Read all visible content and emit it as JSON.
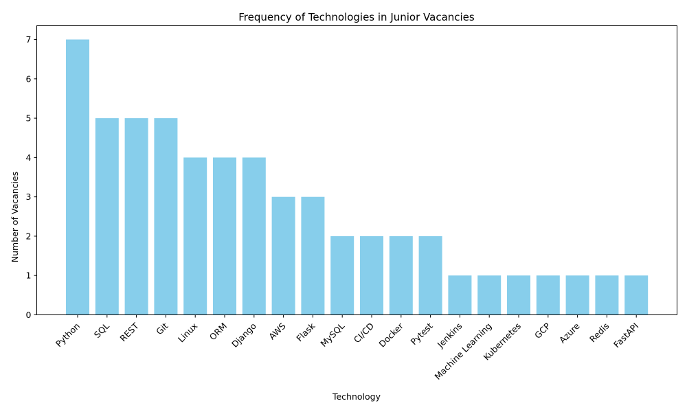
{
  "chart_data": {
    "type": "bar",
    "title": "Frequency of Technologies in Junior Vacancies",
    "xlabel": "Technology",
    "ylabel": "Number of Vacancies",
    "categories": [
      "Python",
      "SQL",
      "REST",
      "Git",
      "Linux",
      "ORM",
      "Django",
      "AWS",
      "Flask",
      "MySQL",
      "CI/CD",
      "Docker",
      "Pytest",
      "Jenkins",
      "Machine Learning",
      "Kubernetes",
      "GCP",
      "Azure",
      "Redis",
      "FastAPI"
    ],
    "values": [
      7,
      5,
      5,
      5,
      4,
      4,
      4,
      3,
      3,
      2,
      2,
      2,
      2,
      1,
      1,
      1,
      1,
      1,
      1,
      1
    ],
    "ylim": [
      0,
      7.35
    ],
    "yticks": [
      0,
      1,
      2,
      3,
      4,
      5,
      6,
      7
    ],
    "bar_color": "#87ceeb",
    "grid": false,
    "legend": "none"
  }
}
